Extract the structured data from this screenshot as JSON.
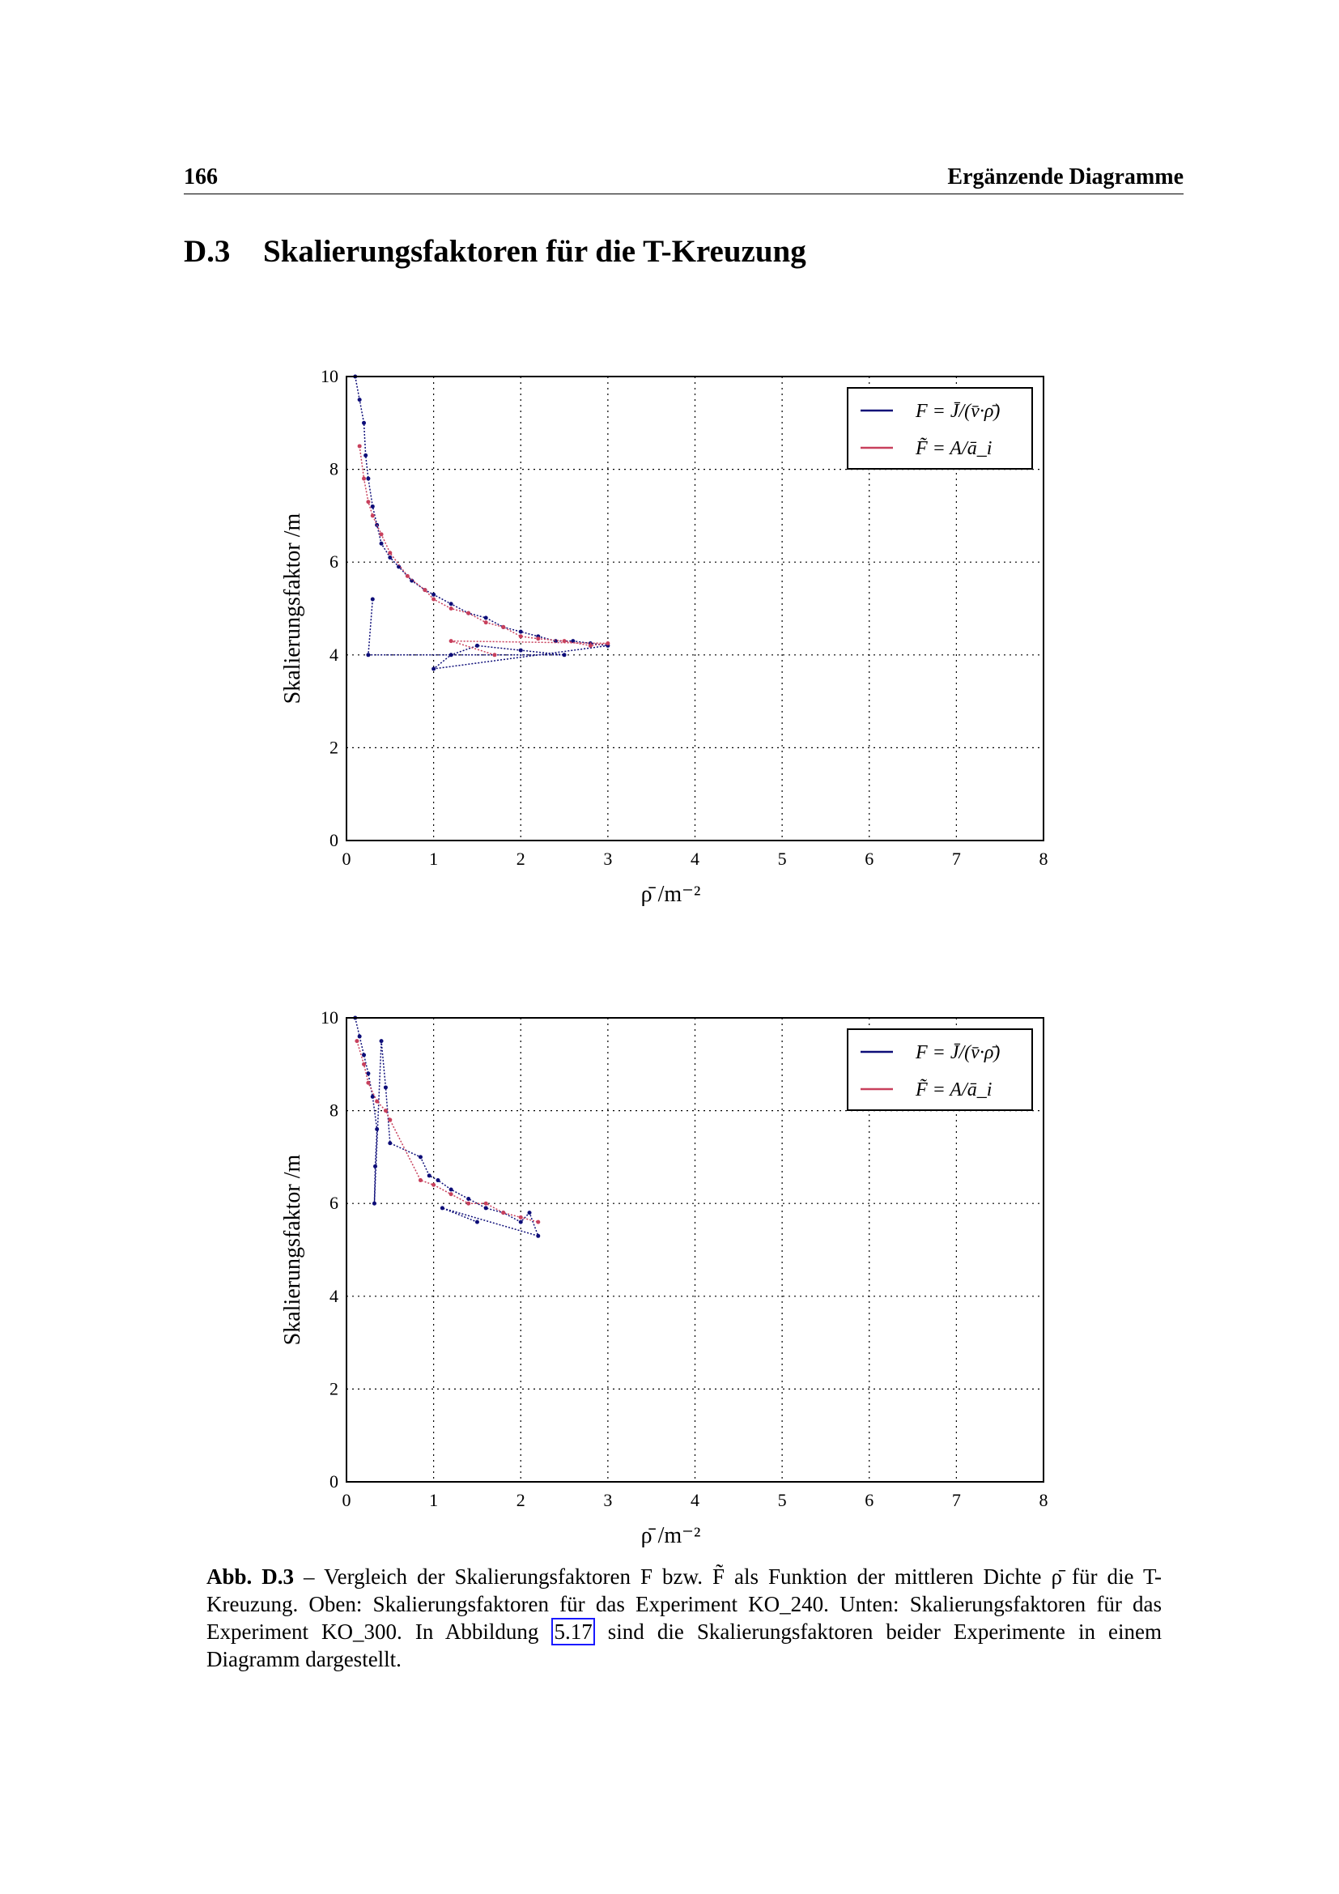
{
  "header": {
    "page_number": "166",
    "running_title": "Ergänzende Diagramme"
  },
  "section": {
    "number": "D.3",
    "title": "Skalierungsfaktoren für die T-Kreuzung"
  },
  "colors": {
    "blue": "#0d0d78",
    "red": "#c8405c"
  },
  "chart_data": [
    {
      "type": "scatter",
      "xlabel": "ρ̄  /m⁻²",
      "ylabel": "Skalierungsfaktor /m",
      "xlim": [
        0,
        8
      ],
      "ylim": [
        0,
        10
      ],
      "xticks": [
        "0",
        "1",
        "2",
        "3",
        "4",
        "5",
        "6",
        "7",
        "8"
      ],
      "yticks": [
        "0",
        "2",
        "4",
        "6",
        "8",
        "10"
      ],
      "grid": true,
      "legend": "top-right",
      "series": [
        {
          "name": "F = J̄/(v̄·ρ̄)",
          "color": "blue",
          "points": [
            [
              0.1,
              10
            ],
            [
              0.15,
              9.5
            ],
            [
              0.2,
              9
            ],
            [
              0.22,
              8.3
            ],
            [
              0.25,
              7.8
            ],
            [
              0.3,
              7.2
            ],
            [
              0.35,
              6.8
            ],
            [
              0.4,
              6.4
            ],
            [
              0.5,
              6.1
            ],
            [
              0.6,
              5.9
            ],
            [
              0.75,
              5.6
            ],
            [
              0.9,
              5.4
            ],
            [
              1.0,
              5.3
            ],
            [
              1.2,
              5.1
            ],
            [
              1.4,
              4.9
            ],
            [
              1.6,
              4.8
            ],
            [
              1.8,
              4.6
            ],
            [
              2.0,
              4.5
            ],
            [
              2.2,
              4.4
            ],
            [
              2.4,
              4.3
            ],
            [
              2.6,
              4.3
            ],
            [
              2.8,
              4.25
            ],
            [
              3.0,
              4.2
            ],
            [
              1.0,
              3.7
            ],
            [
              1.2,
              4.0
            ],
            [
              1.5,
              4.2
            ],
            [
              2.0,
              4.1
            ],
            [
              2.5,
              4.0
            ],
            [
              0.25,
              4.0
            ],
            [
              0.3,
              5.2
            ]
          ]
        },
        {
          "name": "F̃ = A/ā_i",
          "color": "red",
          "points": [
            [
              0.15,
              8.5
            ],
            [
              0.2,
              7.8
            ],
            [
              0.25,
              7.3
            ],
            [
              0.3,
              7.0
            ],
            [
              0.4,
              6.6
            ],
            [
              0.5,
              6.2
            ],
            [
              0.7,
              5.7
            ],
            [
              0.9,
              5.4
            ],
            [
              1.0,
              5.2
            ],
            [
              1.2,
              5.0
            ],
            [
              1.4,
              4.9
            ],
            [
              1.6,
              4.7
            ],
            [
              1.8,
              4.6
            ],
            [
              2.0,
              4.4
            ],
            [
              2.2,
              4.35
            ],
            [
              2.5,
              4.3
            ],
            [
              2.8,
              4.2
            ],
            [
              3.0,
              4.25
            ],
            [
              1.2,
              4.3
            ],
            [
              1.7,
              4.0
            ]
          ]
        }
      ]
    },
    {
      "type": "scatter",
      "xlabel": "ρ̄  /m⁻²",
      "ylabel": "Skalierungsfaktor /m",
      "xlim": [
        0,
        8
      ],
      "ylim": [
        0,
        10
      ],
      "xticks": [
        "0",
        "1",
        "2",
        "3",
        "4",
        "5",
        "6",
        "7",
        "8"
      ],
      "yticks": [
        "0",
        "2",
        "4",
        "6",
        "8",
        "10"
      ],
      "grid": true,
      "legend": "top-right",
      "series": [
        {
          "name": "F = J̄/(v̄·ρ̄)",
          "color": "blue",
          "points": [
            [
              0.1,
              10
            ],
            [
              0.15,
              9.6
            ],
            [
              0.2,
              9.2
            ],
            [
              0.25,
              8.8
            ],
            [
              0.3,
              8.3
            ],
            [
              0.35,
              7.6
            ],
            [
              0.33,
              6.8
            ],
            [
              0.32,
              6.0
            ],
            [
              0.4,
              9.5
            ],
            [
              0.45,
              8.5
            ],
            [
              0.5,
              7.3
            ],
            [
              0.85,
              7.0
            ],
            [
              0.95,
              6.6
            ],
            [
              1.05,
              6.5
            ],
            [
              1.2,
              6.3
            ],
            [
              1.4,
              6.1
            ],
            [
              1.6,
              5.9
            ],
            [
              1.8,
              5.8
            ],
            [
              2.0,
              5.6
            ],
            [
              2.1,
              5.8
            ],
            [
              2.2,
              5.3
            ],
            [
              1.1,
              5.9
            ],
            [
              1.5,
              5.6
            ]
          ]
        },
        {
          "name": "F̃ = A/ā_i",
          "color": "red",
          "points": [
            [
              0.12,
              9.5
            ],
            [
              0.2,
              9.0
            ],
            [
              0.25,
              8.6
            ],
            [
              0.35,
              8.2
            ],
            [
              0.45,
              8.0
            ],
            [
              0.5,
              7.8
            ],
            [
              0.85,
              6.5
            ],
            [
              1.0,
              6.4
            ],
            [
              1.2,
              6.2
            ],
            [
              1.4,
              6.0
            ],
            [
              1.6,
              6.0
            ],
            [
              1.8,
              5.8
            ],
            [
              2.0,
              5.7
            ],
            [
              2.2,
              5.6
            ]
          ]
        }
      ]
    }
  ],
  "caption": {
    "label": "Abb. D.3",
    "text_1": " – Vergleich der Skalierungsfaktoren F bzw. F̃ als Funktion der mittleren Dichte ρ̄ für die T-Kreuzung. Oben: Skalierungsfaktoren für das Experiment KO_240. Unten: Skalierungsfaktoren für das Experiment KO_300. In Abbildung ",
    "ref": "5.17",
    "text_2": " sind die Skalierungsfaktoren beider Experimente in einem Diagramm dargestellt."
  }
}
